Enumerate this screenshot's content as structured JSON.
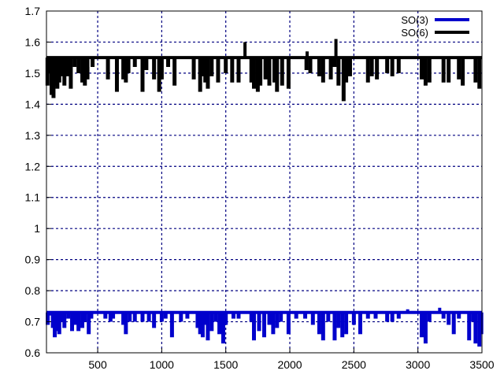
{
  "chart_data": {
    "type": "line",
    "xlim": [
      100,
      3500
    ],
    "ylim": [
      0.6,
      1.7
    ],
    "x_ticks": [
      500,
      1000,
      1500,
      2000,
      2500,
      3000,
      3500
    ],
    "y_ticks": [
      0.6,
      0.7,
      0.8,
      0.9,
      1,
      1.1,
      1.2,
      1.3,
      1.4,
      1.5,
      1.6,
      1.7
    ],
    "x_tick_labels": [
      "500",
      "1000",
      "1500",
      "2000",
      "2500",
      "3000",
      "3500"
    ],
    "y_tick_labels": [
      "0.6",
      "0.7",
      "0.8",
      "0.9",
      "1",
      "1.1",
      "1.2",
      "1.3",
      "1.4",
      "1.5",
      "1.6",
      "1.7"
    ],
    "grid": true,
    "legend_position": "top-right",
    "series": [
      {
        "name": "SO(3)",
        "color": "#0000cc",
        "baseline": 0.73,
        "dips": [
          [
            110,
            0.69
          ],
          [
            125,
            0.72
          ],
          [
            150,
            0.68
          ],
          [
            165,
            0.65
          ],
          [
            180,
            0.67
          ],
          [
            200,
            0.66
          ],
          [
            215,
            0.7
          ],
          [
            240,
            0.68
          ],
          [
            270,
            0.71
          ],
          [
            300,
            0.67
          ],
          [
            330,
            0.69
          ],
          [
            350,
            0.67
          ],
          [
            380,
            0.68
          ],
          [
            400,
            0.7
          ],
          [
            430,
            0.66
          ],
          [
            450,
            0.71
          ],
          [
            560,
            0.71
          ],
          [
            600,
            0.7
          ],
          [
            620,
            0.71
          ],
          [
            700,
            0.69
          ],
          [
            720,
            0.66
          ],
          [
            750,
            0.7
          ],
          [
            790,
            0.7
          ],
          [
            850,
            0.7
          ],
          [
            900,
            0.7
          ],
          [
            940,
            0.68
          ],
          [
            1000,
            0.7
          ],
          [
            1030,
            0.71
          ],
          [
            1080,
            0.65
          ],
          [
            1150,
            0.7
          ],
          [
            1200,
            0.71
          ],
          [
            1280,
            0.68
          ],
          [
            1300,
            0.66
          ],
          [
            1320,
            0.65
          ],
          [
            1340,
            0.69
          ],
          [
            1360,
            0.64
          ],
          [
            1390,
            0.67
          ],
          [
            1420,
            0.7
          ],
          [
            1450,
            0.66
          ],
          [
            1480,
            0.63
          ],
          [
            1500,
            0.69
          ],
          [
            1560,
            0.71
          ],
          [
            1600,
            0.71
          ],
          [
            1700,
            0.7
          ],
          [
            1720,
            0.64
          ],
          [
            1760,
            0.67
          ],
          [
            1800,
            0.65
          ],
          [
            1840,
            0.69
          ],
          [
            1870,
            0.66
          ],
          [
            1900,
            0.68
          ],
          [
            1930,
            0.7
          ],
          [
            1990,
            0.66
          ],
          [
            2050,
            0.71
          ],
          [
            2120,
            0.71
          ],
          [
            2180,
            0.69
          ],
          [
            2230,
            0.66
          ],
          [
            2260,
            0.64
          ],
          [
            2300,
            0.7
          ],
          [
            2350,
            0.64
          ],
          [
            2380,
            0.68
          ],
          [
            2410,
            0.65
          ],
          [
            2440,
            0.66
          ],
          [
            2500,
            0.69
          ],
          [
            2550,
            0.66
          ],
          [
            2610,
            0.71
          ],
          [
            2670,
            0.71
          ],
          [
            2760,
            0.7
          ],
          [
            2800,
            0.7
          ],
          [
            2850,
            0.71
          ],
          [
            3030,
            0.65
          ],
          [
            3060,
            0.63
          ],
          [
            3090,
            0.7
          ],
          [
            3200,
            0.71
          ],
          [
            3240,
            0.69
          ],
          [
            3280,
            0.66
          ],
          [
            3320,
            0.71
          ],
          [
            3400,
            0.64
          ],
          [
            3430,
            0.7
          ],
          [
            3450,
            0.63
          ],
          [
            3480,
            0.62
          ],
          [
            3495,
            0.66
          ]
        ],
        "peaks": [
          [
            2920,
            0.74
          ],
          [
            3170,
            0.745
          ]
        ]
      },
      {
        "name": "SO(6)",
        "color": "#000000",
        "baseline": 1.55,
        "dips": [
          [
            108,
            1.46
          ],
          [
            125,
            1.5
          ],
          [
            140,
            1.43
          ],
          [
            155,
            1.42
          ],
          [
            170,
            1.46
          ],
          [
            185,
            1.45
          ],
          [
            200,
            1.47
          ],
          [
            215,
            1.49
          ],
          [
            240,
            1.46
          ],
          [
            260,
            1.49
          ],
          [
            290,
            1.45
          ],
          [
            320,
            1.52
          ],
          [
            350,
            1.5
          ],
          [
            380,
            1.47
          ],
          [
            400,
            1.46
          ],
          [
            420,
            1.48
          ],
          [
            460,
            1.52
          ],
          [
            580,
            1.48
          ],
          [
            650,
            1.44
          ],
          [
            700,
            1.48
          ],
          [
            720,
            1.47
          ],
          [
            740,
            1.5
          ],
          [
            790,
            1.52
          ],
          [
            850,
            1.44
          ],
          [
            880,
            1.51
          ],
          [
            940,
            1.48
          ],
          [
            980,
            1.44
          ],
          [
            1000,
            1.48
          ],
          [
            1050,
            1.52
          ],
          [
            1100,
            1.46
          ],
          [
            1250,
            1.48
          ],
          [
            1300,
            1.44
          ],
          [
            1320,
            1.49
          ],
          [
            1340,
            1.47
          ],
          [
            1360,
            1.45
          ],
          [
            1390,
            1.49
          ],
          [
            1440,
            1.47
          ],
          [
            1500,
            1.5
          ],
          [
            1550,
            1.47
          ],
          [
            1600,
            1.47
          ],
          [
            1700,
            1.47
          ],
          [
            1720,
            1.45
          ],
          [
            1750,
            1.44
          ],
          [
            1770,
            1.46
          ],
          [
            1810,
            1.48
          ],
          [
            1840,
            1.46
          ],
          [
            1880,
            1.47
          ],
          [
            1900,
            1.44
          ],
          [
            1940,
            1.46
          ],
          [
            1990,
            1.45
          ],
          [
            2130,
            1.51
          ],
          [
            2160,
            1.5
          ],
          [
            2230,
            1.49
          ],
          [
            2260,
            1.47
          ],
          [
            2320,
            1.48
          ],
          [
            2350,
            1.52
          ],
          [
            2380,
            1.46
          ],
          [
            2420,
            1.41
          ],
          [
            2440,
            1.47
          ],
          [
            2470,
            1.49
          ],
          [
            2610,
            1.47
          ],
          [
            2640,
            1.49
          ],
          [
            2680,
            1.48
          ],
          [
            2760,
            1.5
          ],
          [
            2800,
            1.49
          ],
          [
            2850,
            1.5
          ],
          [
            3030,
            1.48
          ],
          [
            3060,
            1.46
          ],
          [
            3090,
            1.47
          ],
          [
            3200,
            1.47
          ],
          [
            3240,
            1.47
          ],
          [
            3320,
            1.48
          ],
          [
            3350,
            1.46
          ],
          [
            3450,
            1.47
          ],
          [
            3480,
            1.45
          ]
        ],
        "peaks": [
          [
            2135,
            1.57
          ],
          [
            1650,
            1.6
          ],
          [
            2360,
            1.61
          ]
        ]
      }
    ]
  }
}
